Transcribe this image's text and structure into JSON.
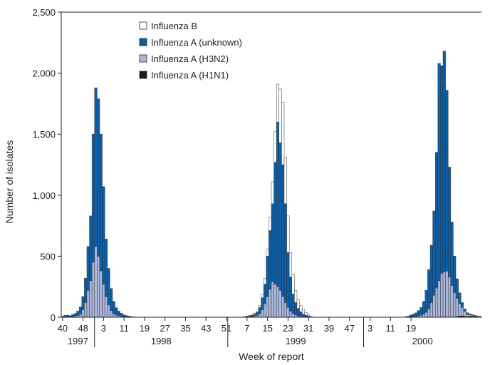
{
  "colors": {
    "flu_b": "#ffffff",
    "flu_a_unknown": "#0b5fa8",
    "flu_a_h3n2": "#aab6dc",
    "flu_a_h1n1": "#1a1a1a",
    "stroke": "#333333"
  },
  "chart_data": {
    "type": "bar",
    "stacked": true,
    "xlabel": "Week of report",
    "ylabel": "Number of isolates",
    "ylim": [
      0,
      2500
    ],
    "yticks": [
      "0",
      "500",
      "1,000",
      "1,500",
      "2,000",
      "2,500"
    ],
    "xtick_labels": [
      "40",
      "48",
      "3",
      "11",
      "19",
      "27",
      "35",
      "43",
      "51",
      "7",
      "15",
      "23",
      "31",
      "39",
      "47",
      "3",
      "11",
      "19"
    ],
    "year_labels": [
      "1997",
      "1998",
      "1999",
      "2000"
    ],
    "legend": [
      {
        "key": "flu_b",
        "label": "Influenza B"
      },
      {
        "key": "flu_a_unknown",
        "label": "Influenza A (unknown)"
      },
      {
        "key": "flu_a_h3n2",
        "label": "Influenza A (H3N2)"
      },
      {
        "key": "flu_a_h1n1",
        "label": "Influenza A (H1N1)"
      }
    ],
    "legend_position": "top-center",
    "first_week": "1997 week 40",
    "series": [
      {
        "name": "Influenza A (H1N1)",
        "key": "flu_a_h1n1",
        "values": [
          0,
          0,
          0,
          0,
          0,
          0,
          0,
          0,
          0,
          0,
          0,
          0,
          0,
          0,
          0,
          0,
          0,
          0,
          0,
          0,
          0,
          0,
          0,
          0,
          0,
          0,
          0,
          0,
          0,
          0,
          0,
          0,
          0,
          0,
          0,
          0,
          0,
          0,
          0,
          0,
          0,
          0,
          0,
          0,
          0,
          0,
          0,
          0,
          0,
          0,
          0,
          0,
          0,
          0,
          0,
          0,
          0,
          0,
          0,
          0,
          0,
          0,
          0,
          0,
          0,
          0,
          0,
          0,
          0,
          0,
          0,
          0,
          0,
          0,
          0,
          0,
          0,
          0,
          0,
          0,
          0,
          0,
          0,
          0,
          0,
          0,
          0,
          0,
          0,
          0,
          0,
          0,
          0,
          0,
          0,
          0,
          0,
          0,
          0,
          0,
          0,
          0,
          0,
          0,
          0,
          0,
          0,
          0,
          0,
          0,
          0,
          0,
          0,
          0,
          0,
          0,
          0,
          0,
          0,
          0,
          0,
          0,
          0,
          0,
          0,
          0,
          0,
          0,
          0,
          0,
          0,
          0,
          0,
          0,
          0,
          0,
          0,
          0,
          0,
          0,
          0,
          0,
          0,
          0,
          0,
          0,
          0,
          0,
          0,
          0,
          0,
          0,
          0,
          0,
          5,
          10,
          10,
          8,
          5,
          8,
          10,
          8,
          5,
          4
        ]
      },
      {
        "name": "Influenza A (H3N2)",
        "key": "flu_a_h3n2",
        "values": [
          3,
          5,
          4,
          4,
          6,
          10,
          15,
          25,
          60,
          120,
          220,
          300,
          450,
          580,
          500,
          380,
          270,
          170,
          100,
          55,
          30,
          18,
          12,
          8,
          5,
          3,
          2,
          1,
          0,
          0,
          0,
          0,
          0,
          0,
          0,
          0,
          0,
          0,
          0,
          0,
          0,
          0,
          0,
          0,
          0,
          0,
          0,
          0,
          0,
          0,
          0,
          0,
          0,
          0,
          0,
          0,
          0,
          0,
          0,
          0,
          0,
          0,
          0,
          0,
          0,
          0,
          0,
          0,
          0,
          0,
          1,
          2,
          3,
          4,
          6,
          10,
          15,
          30,
          60,
          110,
          170,
          230,
          290,
          270,
          250,
          220,
          170,
          120,
          80,
          50,
          30,
          20,
          12,
          8,
          5,
          3,
          2,
          0,
          0,
          0,
          0,
          0,
          0,
          0,
          0,
          0,
          0,
          0,
          0,
          0,
          0,
          0,
          0,
          0,
          0,
          0,
          0,
          0,
          0,
          0,
          0,
          0,
          0,
          0,
          0,
          0,
          0,
          0,
          0,
          0,
          0,
          0,
          0,
          0,
          0,
          0,
          2,
          4,
          6,
          10,
          16,
          25,
          40,
          70,
          120,
          180,
          240,
          300,
          360,
          370,
          380,
          330,
          260,
          200,
          150,
          100,
          70,
          40,
          20,
          12,
          8,
          5,
          5,
          4
        ]
      },
      {
        "name": "Influenza A (unknown)",
        "key": "flu_a_unknown",
        "values": [
          5,
          10,
          12,
          8,
          15,
          20,
          35,
          60,
          110,
          200,
          360,
          530,
          1050,
          1300,
          1290,
          1120,
          800,
          470,
          300,
          180,
          100,
          60,
          38,
          25,
          15,
          10,
          7,
          4,
          3,
          2,
          2,
          1,
          1,
          0,
          0,
          0,
          0,
          0,
          0,
          0,
          0,
          0,
          0,
          0,
          0,
          0,
          0,
          0,
          0,
          0,
          0,
          0,
          0,
          0,
          0,
          0,
          0,
          0,
          0,
          0,
          0,
          0,
          0,
          0,
          0,
          0,
          0,
          0,
          0,
          0,
          1,
          2,
          3,
          5,
          10,
          14,
          25,
          50,
          100,
          160,
          330,
          480,
          640,
          1000,
          1350,
          1210,
          1080,
          810,
          450,
          280,
          160,
          100,
          60,
          36,
          20,
          14,
          8,
          3,
          0,
          0,
          0,
          0,
          0,
          0,
          0,
          0,
          0,
          0,
          0,
          0,
          0,
          0,
          0,
          0,
          0,
          0,
          0,
          0,
          0,
          0,
          0,
          0,
          0,
          0,
          0,
          0,
          0,
          0,
          0,
          0,
          0,
          0,
          0,
          0,
          4,
          10,
          16,
          22,
          30,
          45,
          65,
          105,
          180,
          320,
          470,
          690,
          1110,
          1780,
          1700,
          1810,
          1480,
          900,
          520,
          300,
          160,
          90,
          40,
          20,
          12,
          8,
          3,
          2
        ]
      },
      {
        "name": "Influenza B",
        "key": "flu_b",
        "values": [
          0,
          0,
          0,
          0,
          0,
          0,
          0,
          0,
          0,
          0,
          0,
          0,
          0,
          0,
          0,
          0,
          0,
          0,
          0,
          0,
          0,
          0,
          0,
          0,
          0,
          0,
          0,
          0,
          0,
          0,
          0,
          0,
          0,
          0,
          0,
          0,
          0,
          0,
          0,
          0,
          0,
          0,
          0,
          0,
          0,
          0,
          0,
          0,
          0,
          0,
          0,
          0,
          0,
          0,
          0,
          0,
          0,
          0,
          0,
          0,
          0,
          0,
          0,
          0,
          0,
          0,
          0,
          0,
          0,
          0,
          0,
          0,
          3,
          5,
          7,
          10,
          10,
          15,
          30,
          50,
          60,
          110,
          180,
          250,
          310,
          440,
          510,
          380,
          300,
          200,
          160,
          100,
          70,
          50,
          40,
          20,
          10,
          2,
          0,
          0,
          0,
          0,
          0,
          0,
          0,
          0,
          0,
          0,
          0,
          0,
          0,
          0,
          0,
          0,
          0,
          0,
          0,
          0,
          0,
          0,
          0,
          0,
          0,
          0,
          0,
          0,
          0,
          0,
          0,
          0,
          0,
          0,
          0,
          0,
          0,
          0,
          0,
          0,
          0,
          0,
          0,
          0,
          0,
          0,
          0,
          0,
          0,
          0,
          0,
          0,
          0,
          0,
          0,
          0,
          0,
          0,
          0,
          0,
          0,
          0,
          0,
          0,
          0,
          0
        ]
      }
    ]
  }
}
